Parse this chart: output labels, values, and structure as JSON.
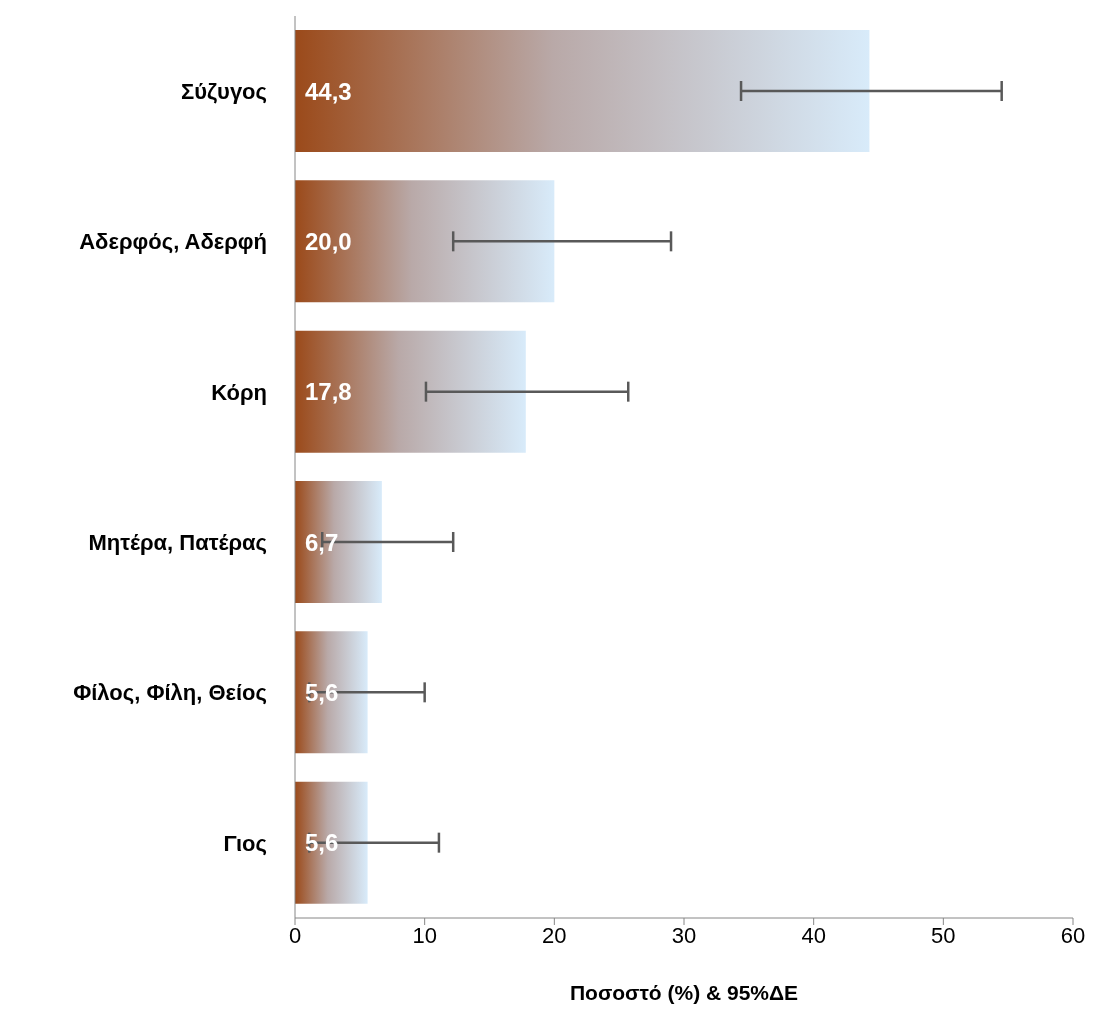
{
  "chart_data": {
    "type": "bar",
    "orientation": "horizontal",
    "xlabel": "Ποσοστό (%) & 95%ΔΕ",
    "categories": [
      "Σύζυγος",
      "Αδερφός, Αδερφή",
      "Κόρη",
      "Μητέρα, Πατέρας",
      "Φίλος, Φίλη, Θείος",
      "Γιος"
    ],
    "values": [
      44.3,
      20.0,
      17.8,
      6.7,
      5.6,
      5.6
    ],
    "value_labels": [
      "44,3",
      "20,0",
      "17,8",
      "6,7",
      "5,6",
      "5,6"
    ],
    "errors": [
      [
        34.4,
        54.5
      ],
      [
        12.2,
        29.0
      ],
      [
        10.1,
        25.7
      ],
      [
        2.1,
        12.2
      ],
      [
        1.1,
        10.0
      ],
      [
        1.1,
        11.1
      ]
    ],
    "color": "#9b4a1a",
    "xlim": [
      0,
      60
    ],
    "xticks": [
      0,
      10,
      20,
      30,
      40,
      50,
      60
    ]
  }
}
